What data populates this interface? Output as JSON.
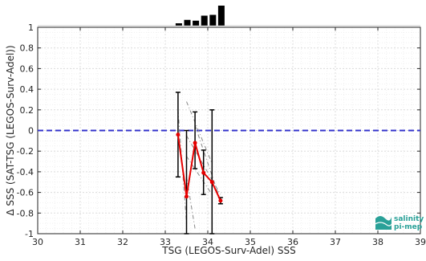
{
  "chart_data": {
    "type": "line",
    "xlabel": "TSG (LEGOS-Surv-Adel) SSS",
    "ylabel": "Δ SSS (SAT-TSG (LEGOS-Surv-Adel))",
    "xlim": [
      30,
      39
    ],
    "ylim": [
      -1,
      1
    ],
    "x_ticks": [
      "30",
      "31",
      "32",
      "33",
      "34",
      "35",
      "36",
      "37",
      "38",
      "39"
    ],
    "y_ticks": [
      "-1",
      "-0.8",
      "-0.6",
      "-0.4",
      "-0.2",
      "0",
      "0.2",
      "0.4",
      "0.6",
      "0.8",
      "1"
    ],
    "grid": true,
    "reference_line": {
      "y": 0,
      "style": "dashed",
      "color": "#3333cc"
    },
    "series": [
      {
        "color": "#e60000",
        "x": [
          33.3,
          33.5,
          33.7,
          33.9,
          34.1,
          34.3
        ],
        "y": [
          -0.04,
          -0.64,
          -0.12,
          -0.41,
          -0.5,
          -0.68
        ],
        "error_low": [
          -0.45,
          -1.0,
          -0.37,
          -0.62,
          -1.0,
          -0.71
        ],
        "error_high": [
          0.37,
          0.0,
          0.18,
          -0.19,
          0.2,
          -0.65
        ]
      }
    ],
    "histogram": {
      "x": [
        33.3,
        33.5,
        33.7,
        33.9,
        34.1,
        34.3
      ],
      "relative_heights": [
        0.12,
        0.29,
        0.25,
        0.5,
        0.54,
        1.0
      ]
    },
    "gray_segments": [
      {
        "x1": 33.3,
        "y1": -0.04,
        "x2": 33.5,
        "y2": -0.64
      },
      {
        "x1": 33.3,
        "y1": 0.2,
        "x2": 33.5,
        "y2": -0.9
      },
      {
        "x1": 33.5,
        "y1": 0.28,
        "x2": 34.1,
        "y2": -0.32
      },
      {
        "x1": 33.5,
        "y1": -0.05,
        "x2": 34.3,
        "y2": -0.62
      },
      {
        "x1": 33.7,
        "y1": 0.05,
        "x2": 34.3,
        "y2": -0.68
      },
      {
        "x1": 33.5,
        "y1": -0.45,
        "x2": 33.7,
        "y2": -0.95
      },
      {
        "x1": 33.5,
        "y1": -0.25,
        "x2": 34.1,
        "y2": -0.62
      }
    ],
    "colors": {
      "grid": "#e6e6e6",
      "axis": "#262626",
      "bar": "#000000",
      "error": "#000000",
      "gray": "#888888"
    }
  },
  "logo": {
    "line1": "salinity",
    "line2": "pi-mep",
    "color": "#2aa198"
  }
}
